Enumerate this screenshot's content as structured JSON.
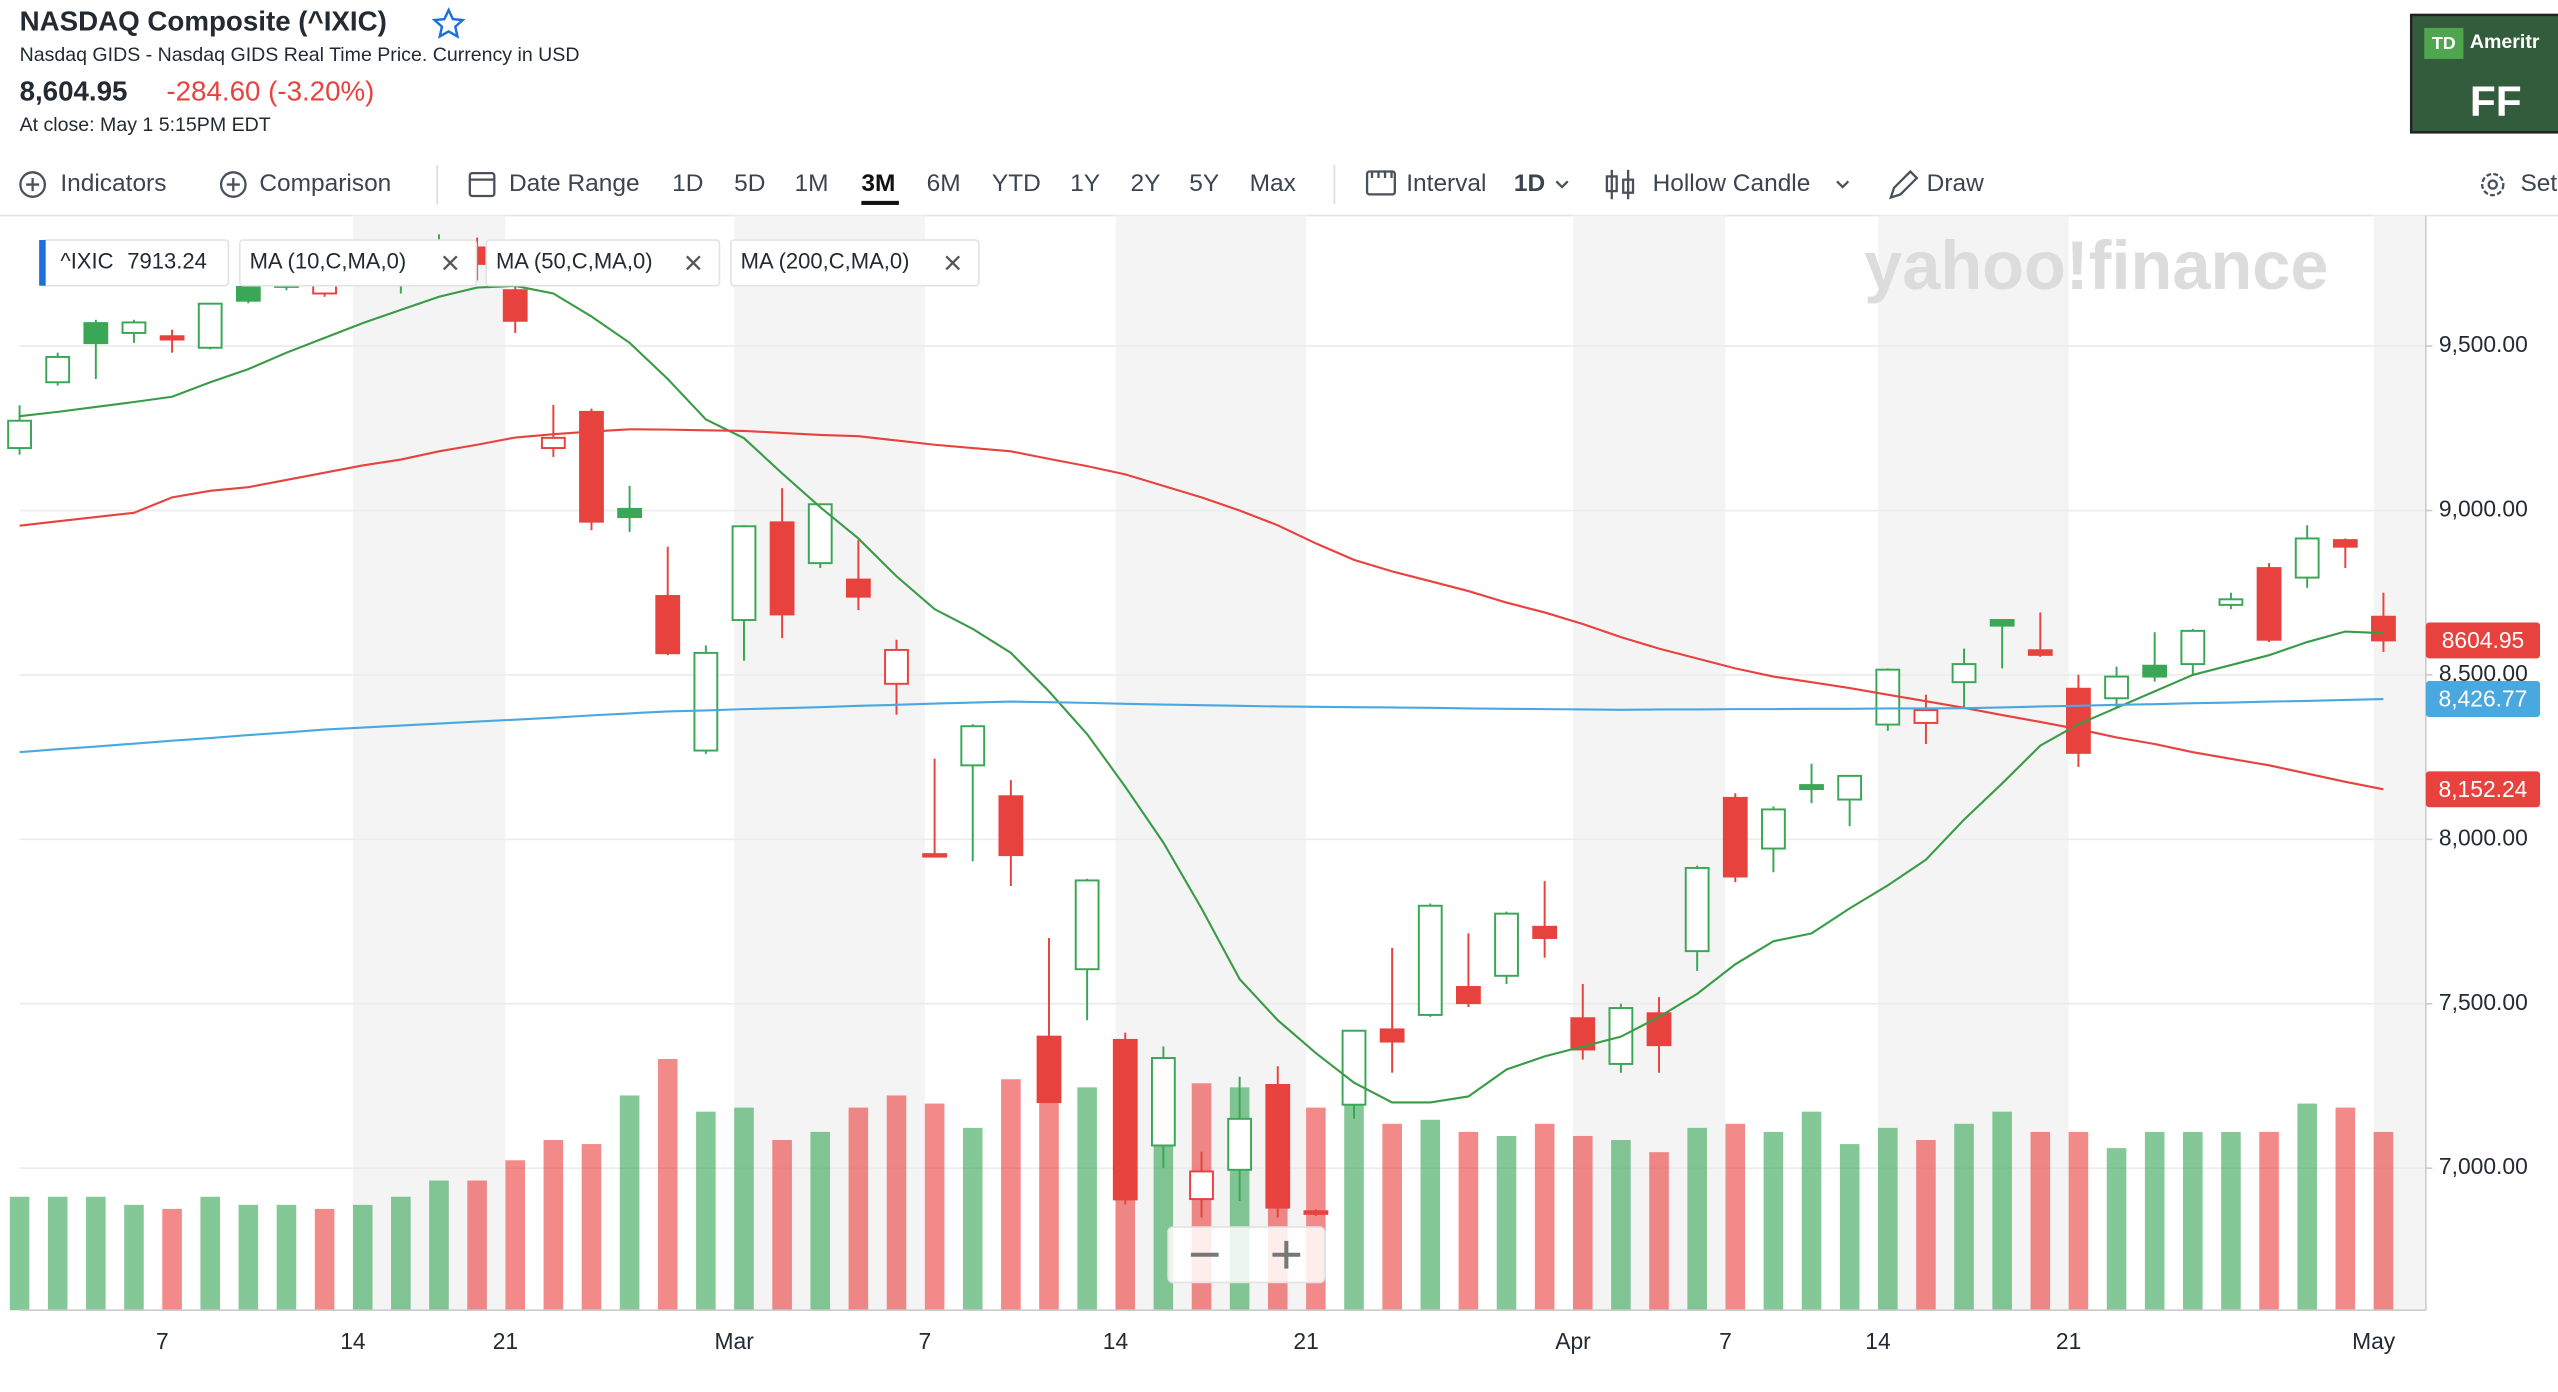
{
  "header": {
    "title": "NASDAQ Composite (^IXIC)",
    "subtitle": "Nasdaq GIDS - Nasdaq GIDS Real Time Price. Currency in USD",
    "price": "8,604.95",
    "change": "-284.60 (-3.20%)",
    "status": "At close: May 1 5:15PM EDT"
  },
  "toolbar": {
    "indicators": "Indicators",
    "comparison": "Comparison",
    "date_range": "Date Range",
    "ranges": [
      {
        "label": "1D"
      },
      {
        "label": "5D"
      },
      {
        "label": "1M"
      },
      {
        "label": "3M",
        "selected": true
      },
      {
        "label": "6M"
      },
      {
        "label": "YTD"
      },
      {
        "label": "1Y"
      },
      {
        "label": "2Y"
      },
      {
        "label": "5Y"
      },
      {
        "label": "Max"
      }
    ],
    "interval": "Interval",
    "interval_value": "1D",
    "chart_style": "Hollow Candle",
    "draw": "Draw",
    "settings": "Set"
  },
  "ad": {
    "logo": "TD",
    "brand": "Ameritr",
    "text": "FF"
  },
  "chart_data": {
    "type": "candlestick",
    "watermark": "yahoo!finance",
    "categories": [
      null,
      null,
      null,
      null,
      "7",
      null,
      null,
      null,
      null,
      "14",
      null,
      null,
      null,
      "21",
      null,
      null,
      null,
      null,
      null,
      "Mar",
      null,
      null,
      null,
      null,
      "7",
      null,
      null,
      null,
      null,
      "14",
      null,
      null,
      null,
      null,
      "21",
      null,
      null,
      null,
      null,
      null,
      null,
      "Apr",
      null,
      null,
      null,
      "7",
      null,
      null,
      null,
      "14",
      null,
      null,
      null,
      null,
      "21",
      null,
      null,
      null,
      null,
      null,
      null,
      null,
      "May"
    ],
    "open": [
      9190,
      9390,
      9570,
      9540,
      9530,
      9495,
      9680,
      9680,
      9660,
      9720,
      9690,
      9780,
      9800,
      9670,
      9190,
      9300,
      9005,
      8740,
      8270,
      8667,
      8964,
      8840,
      8790,
      8473,
      7955,
      8225,
      8131,
      7400,
      7605,
      7390,
      7069,
      6906,
      6995,
      7253,
      6869,
      7193,
      7422,
      7466,
      7551,
      7585,
      7734,
      7456,
      7317,
      7471,
      7660,
      8126,
      7972,
      8165,
      8121,
      8349,
      8354,
      8478,
      8667,
      8575,
      8458,
      8429,
      8528,
      8533,
      8713,
      8825,
      8796,
      8910,
      8677
    ],
    "high": [
      9320,
      9480,
      9580,
      9580,
      9550,
      9630,
      9700,
      9730,
      9740,
      9740,
      9740,
      9840,
      9830,
      9680,
      9321,
      9310,
      9075,
      8890,
      8590,
      8955,
      9068,
      9020,
      8910,
      8607,
      8245,
      8350,
      8180,
      7700,
      7880,
      7412,
      7370,
      7050,
      7278,
      7310,
      6875,
      7420,
      7670,
      7805,
      7714,
      7780,
      7873,
      7560,
      7500,
      7520,
      7920,
      8140,
      8100,
      8230,
      8193,
      8520,
      8440,
      8580,
      8667,
      8690,
      8500,
      8525,
      8630,
      8640,
      8750,
      8840,
      8955,
      8915,
      8750
    ],
    "low": [
      9170,
      9380,
      9400,
      9510,
      9480,
      9490,
      9630,
      9670,
      9650,
      9690,
      9660,
      9770,
      9700,
      9540,
      9163,
      8940,
      8935,
      8560,
      8260,
      8543,
      8612,
      8825,
      8697,
      8379,
      7945,
      7933,
      7858,
      7198,
      7450,
      6890,
      7000,
      6850,
      6900,
      6850,
      6855,
      7150,
      7290,
      7460,
      7490,
      7560,
      7640,
      7330,
      7290,
      7290,
      7600,
      7870,
      7900,
      8110,
      8040,
      8330,
      8290,
      8400,
      8520,
      8555,
      8220,
      8400,
      8480,
      8500,
      8700,
      8600,
      8765,
      8825,
      8570
    ],
    "close": [
      9273,
      9467,
      9509,
      9572,
      9520,
      9629,
      9638,
      9725,
      9711,
      9731,
      9732,
      9817,
      9750,
      9577,
      9221,
      8966,
      8980,
      8566,
      8567,
      8952,
      8684,
      9019,
      8738,
      8576,
      7950,
      8344,
      7952,
      7201,
      7875,
      6905,
      7335,
      6990,
      7150,
      6880,
      6861,
      7418,
      7385,
      7798,
      7502,
      7774,
      7700,
      7361,
      7487,
      7374,
      7913,
      7887,
      8091,
      8153,
      8193,
      8516,
      8393,
      8533,
      8650,
      8561,
      8263,
      8495,
      8495,
      8634,
      8730,
      8607,
      8915,
      8890,
      8604.95
    ],
    "volume": [
      2.8,
      2.8,
      2.8,
      2.6,
      2.5,
      2.8,
      2.6,
      2.6,
      2.5,
      2.6,
      2.8,
      3.2,
      3.2,
      3.7,
      4.2,
      4.1,
      5.3,
      6.2,
      4.9,
      5.0,
      4.2,
      4.4,
      5.0,
      5.3,
      5.1,
      4.5,
      5.7,
      5.4,
      5.5,
      5.5,
      5.3,
      5.6,
      5.5,
      5.4,
      5.0,
      5.4,
      4.6,
      4.7,
      4.4,
      4.3,
      4.6,
      4.3,
      4.2,
      3.9,
      4.5,
      4.6,
      4.4,
      4.9,
      4.1,
      4.5,
      4.2,
      4.6,
      4.9,
      4.4,
      4.4,
      4.0,
      4.4,
      4.4,
      4.4,
      4.4,
      5.1,
      5.0,
      4.4
    ],
    "up_color": "#3aa757",
    "down_color": "#e8423f",
    "legend_ticker": "^IXIC",
    "legend_value": 7913.24,
    "series": [
      {
        "name": "MA (10,C,MA,0)",
        "color": "#3a9b46",
        "values": [
          9287,
          9300,
          9315,
          9330,
          9346,
          9390,
          9430,
          9480,
          9525,
          9570,
          9610,
          9650,
          9678,
          9683,
          9660,
          9590,
          9510,
          9400,
          9277,
          9220,
          9113,
          9010,
          8915,
          8800,
          8700,
          8640,
          8567,
          8450,
          8320,
          8160,
          7990,
          7790,
          7575,
          7450,
          7350,
          7260,
          7200,
          7200,
          7218,
          7300,
          7340,
          7370,
          7400,
          7460,
          7530,
          7620,
          7690,
          7714,
          7790,
          7860,
          7938,
          8060,
          8170,
          8285,
          8350,
          8400,
          8450,
          8500,
          8530,
          8560,
          8600,
          8632,
          8627
        ]
      },
      {
        "name": "MA (50,C,MA,0)",
        "color": "#e8423f",
        "values": [
          8954,
          8967,
          8980,
          8993,
          9040,
          9060,
          9071,
          9093,
          9115,
          9137,
          9155,
          9180,
          9200,
          9222,
          9232,
          9240,
          9247,
          9246,
          9244,
          9242,
          9236,
          9230,
          9226,
          9213,
          9200,
          9190,
          9180,
          9157,
          9135,
          9110,
          9075,
          9040,
          9000,
          8955,
          8900,
          8850,
          8815,
          8785,
          8755,
          8720,
          8690,
          8655,
          8615,
          8580,
          8550,
          8520,
          8495,
          8478,
          8460,
          8440,
          8420,
          8400,
          8378,
          8357,
          8335,
          8310,
          8290,
          8265,
          8245,
          8225,
          8200,
          8175,
          8152.24
        ]
      },
      {
        "name": "MA (200,C,MA,0)",
        "color": "#4aa8e0",
        "values": [
          8265,
          8274,
          8282,
          8291,
          8300,
          8308,
          8317,
          8325,
          8334,
          8340,
          8346,
          8352,
          8358,
          8364,
          8370,
          8377,
          8383,
          8389,
          8392,
          8396,
          8399,
          8402,
          8406,
          8409,
          8413,
          8416,
          8419,
          8417,
          8415,
          8412,
          8410,
          8408,
          8406,
          8404,
          8403,
          8402,
          8401,
          8400,
          8398,
          8397,
          8396,
          8395,
          8394,
          8395,
          8395,
          8396,
          8396,
          8397,
          8397,
          8398,
          8398,
          8399,
          8401,
          8404,
          8406,
          8409,
          8411,
          8414,
          8416,
          8419,
          8421,
          8424,
          8426.77
        ]
      }
    ],
    "price_tags": [
      {
        "value": 8604.95,
        "label": "8604.95",
        "color": "#e8423f"
      },
      {
        "value": 8426.77,
        "label": "8,426.77",
        "color": "#4aa8e0"
      },
      {
        "value": 8152.24,
        "label": "8,152.24",
        "color": "#e8423f"
      }
    ],
    "ylim": [
      6568,
      9897
    ],
    "yticks": [
      {
        "value": 7000,
        "label": "7,000.00"
      },
      {
        "value": 7500,
        "label": "7,500.00"
      },
      {
        "value": 8000,
        "label": "8,000.00"
      },
      {
        "value": 8500,
        "label": "8,500.00"
      },
      {
        "value": 9000,
        "label": "9,000.00"
      },
      {
        "value": 9500,
        "label": "9,500.00"
      }
    ],
    "grid": true
  }
}
